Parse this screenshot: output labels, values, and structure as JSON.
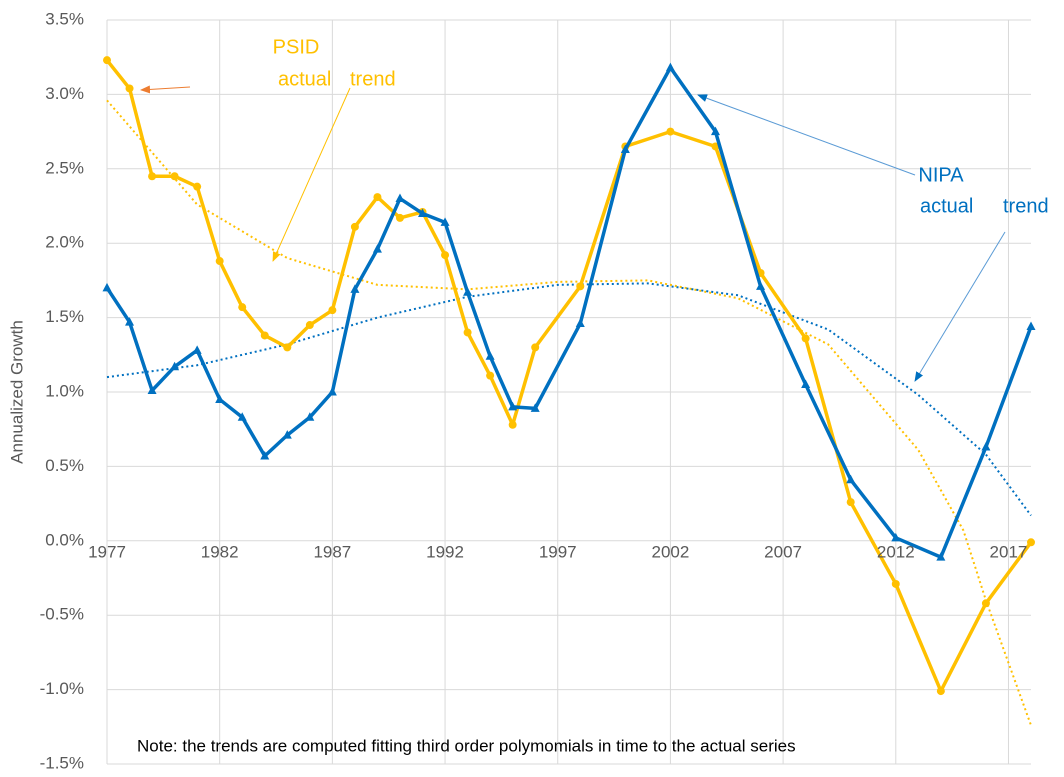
{
  "chart_data": {
    "type": "line",
    "y_label": "Annualized Growth",
    "xlim": [
      1977,
      2018
    ],
    "xticks": [
      1977,
      1982,
      1987,
      1992,
      1997,
      2002,
      2007,
      2012,
      2017
    ],
    "ylim": [
      -1.5,
      3.5
    ],
    "yticks": [
      {
        "value": -1.5,
        "label": "-1.5%"
      },
      {
        "value": -1.0,
        "label": "-1.0%"
      },
      {
        "value": -0.5,
        "label": "-0.5%"
      },
      {
        "value": 0,
        "label": "0.0%"
      },
      {
        "value": 0.5,
        "label": "0.5%"
      },
      {
        "value": 1.0,
        "label": "1.0%"
      },
      {
        "value": 1.5,
        "label": "1.5%"
      },
      {
        "value": 2.0,
        "label": "2.0%"
      },
      {
        "value": 2.5,
        "label": "2.5%"
      },
      {
        "value": 3.0,
        "label": "3.0%"
      },
      {
        "value": 3.5,
        "label": "3.5%"
      }
    ],
    "grid": true,
    "series": [
      {
        "name": "PSID",
        "color": "#ffc000",
        "marker": "circle",
        "x": [
          1977,
          1978,
          1979,
          1980,
          1981,
          1982,
          1983,
          1984,
          1985,
          1986,
          1987,
          1988,
          1989,
          1990,
          1991,
          1992,
          1993,
          1994,
          1995,
          1996,
          1998,
          2000,
          2002,
          2004,
          2006,
          2008,
          2010,
          2012,
          2014,
          2016,
          2018
        ],
        "values": [
          3.23,
          3.04,
          2.45,
          2.45,
          2.38,
          1.88,
          1.57,
          1.38,
          1.3,
          1.45,
          1.55,
          2.11,
          2.31,
          2.17,
          2.21,
          1.92,
          1.4,
          1.11,
          0.78,
          1.3,
          1.71,
          2.65,
          2.75,
          2.65,
          1.8,
          1.36,
          0.26,
          -0.29,
          -1.01,
          -0.42,
          -0.01
        ]
      },
      {
        "name": "NIPA",
        "color": "#0070c0",
        "marker": "triangle",
        "x": [
          1977,
          1978,
          1979,
          1980,
          1981,
          1982,
          1983,
          1984,
          1985,
          1986,
          1987,
          1988,
          1989,
          1990,
          1991,
          1992,
          1993,
          1994,
          1995,
          1996,
          1998,
          2000,
          2002,
          2004,
          2006,
          2008,
          2010,
          2012,
          2014,
          2016,
          2018
        ],
        "values": [
          1.7,
          1.47,
          1.01,
          1.17,
          1.28,
          0.95,
          0.83,
          0.57,
          0.71,
          0.83,
          1.0,
          1.69,
          1.96,
          2.3,
          2.2,
          2.14,
          1.67,
          1.24,
          0.9,
          0.89,
          1.46,
          2.63,
          3.18,
          2.75,
          1.71,
          1.05,
          0.41,
          0.02,
          -0.11,
          0.63,
          1.44
        ]
      }
    ],
    "trends": [
      {
        "color": "#ffc000",
        "style": "dotted",
        "x": [
          1977,
          1981,
          1985,
          1989,
          1993,
          1997,
          2001,
          2005,
          2009,
          2013,
          2015,
          2016,
          2018
        ],
        "values": [
          2.96,
          2.26,
          1.9,
          1.72,
          1.69,
          1.74,
          1.75,
          1.63,
          1.32,
          0.61,
          0.07,
          -0.4,
          -1.24
        ]
      },
      {
        "color": "#0070c0",
        "style": "dotted",
        "x": [
          1977,
          1981,
          1985,
          1989,
          1993,
          1997,
          2001,
          2005,
          2009,
          2013,
          2016,
          2018
        ],
        "values": [
          1.1,
          1.18,
          1.32,
          1.5,
          1.64,
          1.72,
          1.73,
          1.65,
          1.42,
          0.98,
          0.58,
          0.17
        ]
      }
    ],
    "annotations": [
      {
        "text": "actual"
      },
      {
        "text": "trend"
      },
      {
        "text": "actual"
      },
      {
        "text": "trend"
      },
      {
        "text": "Note: the trends are computed fitting third order polymomials in time to the actual series"
      }
    ]
  }
}
